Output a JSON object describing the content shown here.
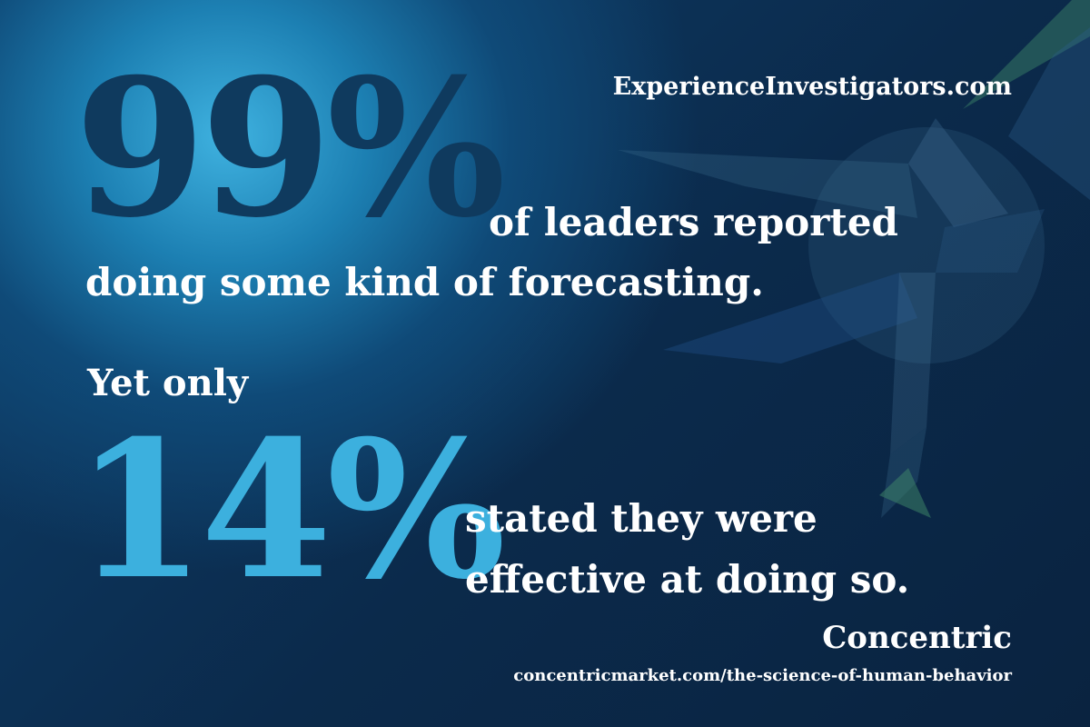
{
  "website": "ExperienceInvestigators.com",
  "stat1": {
    "percent": "99%",
    "line1": "of leaders reported",
    "line2": "doing some kind of forecasting."
  },
  "transition": "Yet only",
  "stat2": {
    "percent": "14%",
    "line1": "stated they were",
    "line2": "effective at doing so."
  },
  "source": {
    "brand": "Concentric",
    "url": "concentricmarket.com/the-science-of-human-behavior"
  },
  "colors": {
    "background_dark": "#0b2a4b",
    "glow": "#3fb2e0",
    "percent_dark": "#0f3a5e",
    "percent_light": "#3cb0de",
    "text": "#ffffff"
  },
  "icons": {
    "background_graphic": "compass-star-logo"
  }
}
